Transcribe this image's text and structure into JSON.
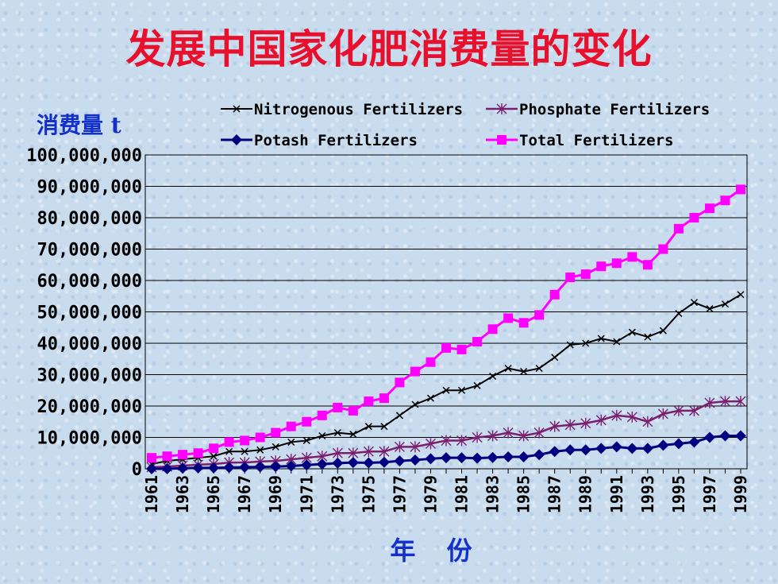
{
  "title": "发展中国家化肥消费量的变化",
  "chart_data": {
    "type": "line",
    "ylabel": "消费量 t",
    "xlabel": "年 份",
    "ylim": [
      0,
      100000000
    ],
    "ytick_labels": [
      "0",
      "10,000,000",
      "20,000,000",
      "30,000,000",
      "40,000,000",
      "50,000,000",
      "60,000,000",
      "70,000,000",
      "80,000,000",
      "90,000,000",
      "100,000,000"
    ],
    "xtick_labels": [
      "1961",
      "1963",
      "1965",
      "1967",
      "1969",
      "1971",
      "1973",
      "1975",
      "1977",
      "1979",
      "1981",
      "1983",
      "1985",
      "1987",
      "1989",
      "1991",
      "1993",
      "1995",
      "1997",
      "1999"
    ],
    "grid": "horizontal",
    "legend_position": "top",
    "x": [
      1961,
      1962,
      1963,
      1964,
      1965,
      1966,
      1967,
      1968,
      1969,
      1970,
      1971,
      1972,
      1973,
      1974,
      1975,
      1976,
      1977,
      1978,
      1979,
      1980,
      1981,
      1982,
      1983,
      1984,
      1985,
      1986,
      1987,
      1988,
      1989,
      1990,
      1991,
      1992,
      1993,
      1994,
      1995,
      1996,
      1997,
      1998,
      1999
    ],
    "series": [
      {
        "name": "Nitrogenous Fertilizers",
        "color": "#000000",
        "marker": "x",
        "values": [
          1500000,
          2500000,
          3000000,
          3500000,
          4000000,
          5500000,
          5500000,
          6000000,
          7000000,
          8500000,
          9000000,
          10500000,
          11500000,
          11000000,
          13500000,
          13500000,
          17000000,
          20500000,
          22500000,
          25000000,
          25000000,
          26500000,
          29500000,
          32000000,
          31000000,
          32000000,
          35500000,
          39500000,
          40000000,
          41500000,
          40500000,
          43500000,
          42000000,
          44000000,
          49500000,
          53000000,
          51000000,
          52500000,
          55500000
        ]
      },
      {
        "name": "Phosphate Fertilizers",
        "color": "#7a1f6e",
        "marker": "asterisk",
        "values": [
          500000,
          700000,
          1000000,
          1300000,
          1500000,
          2000000,
          2000000,
          2300000,
          2500000,
          3000000,
          3500000,
          4000000,
          5000000,
          5000000,
          5500000,
          5500000,
          7000000,
          7000000,
          8000000,
          9000000,
          9000000,
          10000000,
          10500000,
          11500000,
          10500000,
          11500000,
          13500000,
          14000000,
          14500000,
          15500000,
          17000000,
          16500000,
          15000000,
          17500000,
          18500000,
          18500000,
          21000000,
          21500000,
          21500000
        ]
      },
      {
        "name": "Potash Fertilizers",
        "color": "#000080",
        "marker": "diamond",
        "values": [
          0,
          0,
          200000,
          300000,
          300000,
          400000,
          500000,
          600000,
          700000,
          900000,
          1200000,
          1500000,
          1800000,
          2000000,
          1900000,
          2100000,
          2500000,
          2800000,
          3200000,
          3500000,
          3500000,
          3400000,
          3600000,
          3800000,
          3800000,
          4500000,
          5500000,
          6000000,
          6000000,
          6500000,
          7000000,
          6500000,
          6500000,
          7500000,
          8000000,
          8500000,
          10000000,
          10500000,
          10500000
        ]
      },
      {
        "name": "Total Fertilizers",
        "color": "#ff00ff",
        "marker": "square",
        "values": [
          3500000,
          4000000,
          4500000,
          5000000,
          6500000,
          8500000,
          9000000,
          10000000,
          11500000,
          13500000,
          15000000,
          17000000,
          19500000,
          18500000,
          21500000,
          22500000,
          27500000,
          31000000,
          34000000,
          38500000,
          38000000,
          40500000,
          44500000,
          48000000,
          46500000,
          49000000,
          55500000,
          61000000,
          62000000,
          64500000,
          65500000,
          67500000,
          65000000,
          70000000,
          76500000,
          80000000,
          83000000,
          85500000,
          89000000
        ]
      }
    ]
  }
}
